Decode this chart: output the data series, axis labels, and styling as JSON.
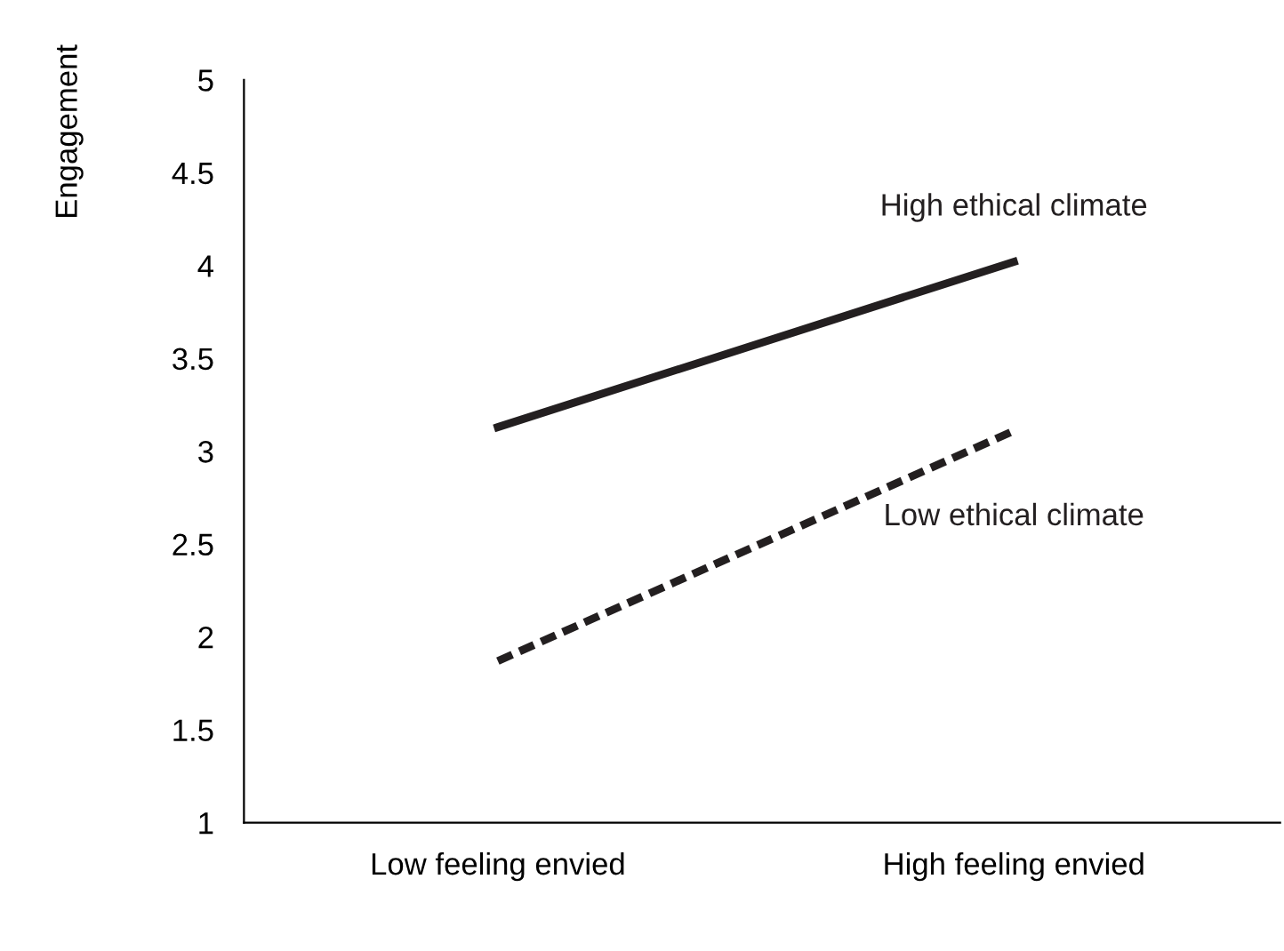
{
  "chart_data": {
    "type": "line",
    "ylabel": "Engagement",
    "categories": [
      "Low feeling envied",
      "High feeling envied"
    ],
    "series": [
      {
        "name": "High ethical climate",
        "color": "#231f20",
        "values": [
          3.13,
          4.02
        ],
        "line_style": "solid"
      },
      {
        "name": "Low ethical climate",
        "color": "#231f20",
        "values": [
          1.87,
          3.11
        ],
        "line_style": "dashed"
      }
    ],
    "ylim": [
      1,
      5
    ],
    "yticks": [
      1,
      1.5,
      2,
      2.5,
      3,
      3.5,
      4,
      4.5,
      5
    ],
    "grid": false,
    "legend": false,
    "marker": "none"
  }
}
